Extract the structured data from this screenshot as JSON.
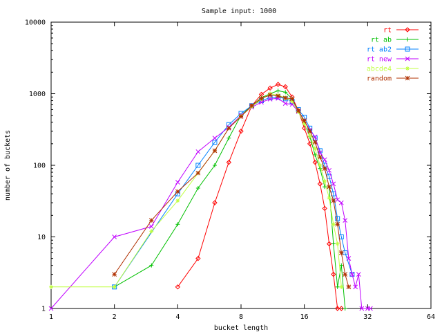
{
  "chart_data": {
    "type": "line",
    "title": "Sample input: 1000",
    "xlabel": "bucket length",
    "ylabel": "number of buckets",
    "x_scale": "log2",
    "y_scale": "log10",
    "xlim": [
      1,
      64
    ],
    "ylim": [
      1,
      10000
    ],
    "x_ticks": [
      {
        "value": 1,
        "label": "1"
      },
      {
        "value": 2,
        "label": "2"
      },
      {
        "value": 4,
        "label": "4"
      },
      {
        "value": 8,
        "label": "8"
      },
      {
        "value": 16,
        "label": "16"
      },
      {
        "value": 32,
        "label": "32"
      },
      {
        "value": 64,
        "label": "64"
      }
    ],
    "y_ticks": [
      {
        "value": 1,
        "label": "1"
      },
      {
        "value": 10,
        "label": "10"
      },
      {
        "value": 100,
        "label": "100"
      },
      {
        "value": 1000,
        "label": "1000"
      },
      {
        "value": 10000,
        "label": "10000"
      }
    ],
    "grid": false,
    "legend_position": "top-right",
    "series": [
      {
        "name": "rt",
        "color": "#ff0000",
        "marker": "diamond",
        "points": [
          [
            4,
            2
          ],
          [
            5,
            5
          ],
          [
            6,
            30
          ],
          [
            7,
            110
          ],
          [
            8,
            300
          ],
          [
            9,
            680
          ],
          [
            10,
            980
          ],
          [
            11,
            1200
          ],
          [
            12,
            1350
          ],
          [
            13,
            1250
          ],
          [
            14,
            900
          ],
          [
            15,
            580
          ],
          [
            16,
            330
          ],
          [
            17,
            200
          ],
          [
            18,
            110
          ],
          [
            19,
            55
          ],
          [
            20,
            25
          ],
          [
            21,
            8
          ],
          [
            22,
            3
          ],
          [
            23,
            1
          ],
          [
            24,
            1
          ]
        ]
      },
      {
        "name": "rt ab",
        "color": "#00c000",
        "marker": "plus",
        "points": [
          [
            2,
            2
          ],
          [
            3,
            4
          ],
          [
            4,
            15
          ],
          [
            5,
            48
          ],
          [
            6,
            100
          ],
          [
            7,
            240
          ],
          [
            8,
            500
          ],
          [
            9,
            680
          ],
          [
            10,
            880
          ],
          [
            11,
            1000
          ],
          [
            12,
            1100
          ],
          [
            13,
            1050
          ],
          [
            14,
            850
          ],
          [
            15,
            560
          ],
          [
            16,
            380
          ],
          [
            17,
            250
          ],
          [
            18,
            140
          ],
          [
            19,
            90
          ],
          [
            20,
            50
          ],
          [
            21,
            50
          ],
          [
            22,
            8
          ],
          [
            23,
            2
          ],
          [
            24,
            4
          ],
          [
            25,
            1
          ]
        ]
      },
      {
        "name": "rt ab2",
        "color": "#0080ff",
        "marker": "square",
        "points": [
          [
            2,
            2
          ],
          [
            4,
            40
          ],
          [
            5,
            100
          ],
          [
            6,
            210
          ],
          [
            7,
            370
          ],
          [
            8,
            530
          ],
          [
            9,
            680
          ],
          [
            10,
            800
          ],
          [
            11,
            880
          ],
          [
            12,
            900
          ],
          [
            13,
            850
          ],
          [
            14,
            780
          ],
          [
            15,
            600
          ],
          [
            16,
            470
          ],
          [
            17,
            330
          ],
          [
            18,
            240
          ],
          [
            19,
            160
          ],
          [
            20,
            100
          ],
          [
            21,
            70
          ],
          [
            22,
            40
          ],
          [
            23,
            18
          ],
          [
            24,
            10
          ],
          [
            25,
            6
          ],
          [
            27,
            3
          ]
        ]
      },
      {
        "name": "rt new",
        "color": "#c000ff",
        "marker": "cross",
        "points": [
          [
            1,
            1
          ],
          [
            2,
            10
          ],
          [
            3,
            14
          ],
          [
            4,
            58
          ],
          [
            5,
            155
          ],
          [
            6,
            240
          ],
          [
            7,
            340
          ],
          [
            8,
            500
          ],
          [
            9,
            650
          ],
          [
            10,
            760
          ],
          [
            11,
            840
          ],
          [
            12,
            860
          ],
          [
            13,
            730
          ],
          [
            14,
            710
          ],
          [
            15,
            560
          ],
          [
            16,
            420
          ],
          [
            17,
            310
          ],
          [
            18,
            250
          ],
          [
            19,
            150
          ],
          [
            20,
            120
          ],
          [
            21,
            85
          ],
          [
            22,
            55
          ],
          [
            23,
            33
          ],
          [
            24,
            30
          ],
          [
            25,
            17
          ],
          [
            26,
            5
          ],
          [
            27,
            3
          ],
          [
            28,
            2
          ],
          [
            29,
            3
          ],
          [
            30,
            1
          ],
          [
            32,
            1
          ],
          [
            33,
            1
          ]
        ]
      },
      {
        "name": "abcde4",
        "color": "#c0ff40",
        "marker": "star",
        "points": [
          [
            1,
            2
          ],
          [
            2,
            2
          ],
          [
            3,
            12
          ],
          [
            4,
            32
          ],
          [
            5,
            78
          ],
          [
            6,
            160
          ],
          [
            7,
            330
          ],
          [
            8,
            490
          ],
          [
            9,
            660
          ],
          [
            10,
            840
          ],
          [
            11,
            1000
          ],
          [
            12,
            950
          ],
          [
            13,
            880
          ],
          [
            14,
            780
          ],
          [
            15,
            560
          ],
          [
            16,
            380
          ],
          [
            17,
            260
          ],
          [
            18,
            170
          ],
          [
            19,
            100
          ],
          [
            20,
            60
          ],
          [
            21,
            35
          ],
          [
            22,
            15
          ],
          [
            23,
            8
          ],
          [
            24,
            2
          ]
        ]
      },
      {
        "name": "random",
        "color": "#b03000",
        "marker": "asterisk",
        "points": [
          [
            2,
            3
          ],
          [
            3,
            17
          ],
          [
            4,
            43
          ],
          [
            5,
            78
          ],
          [
            6,
            160
          ],
          [
            7,
            330
          ],
          [
            8,
            480
          ],
          [
            9,
            680
          ],
          [
            10,
            860
          ],
          [
            11,
            960
          ],
          [
            12,
            930
          ],
          [
            13,
            870
          ],
          [
            14,
            850
          ],
          [
            15,
            580
          ],
          [
            16,
            420
          ],
          [
            17,
            300
          ],
          [
            18,
            210
          ],
          [
            19,
            130
          ],
          [
            20,
            90
          ],
          [
            21,
            50
          ],
          [
            22,
            32
          ],
          [
            23,
            15
          ],
          [
            24,
            6
          ],
          [
            25,
            3
          ],
          [
            26,
            2
          ]
        ]
      }
    ]
  }
}
